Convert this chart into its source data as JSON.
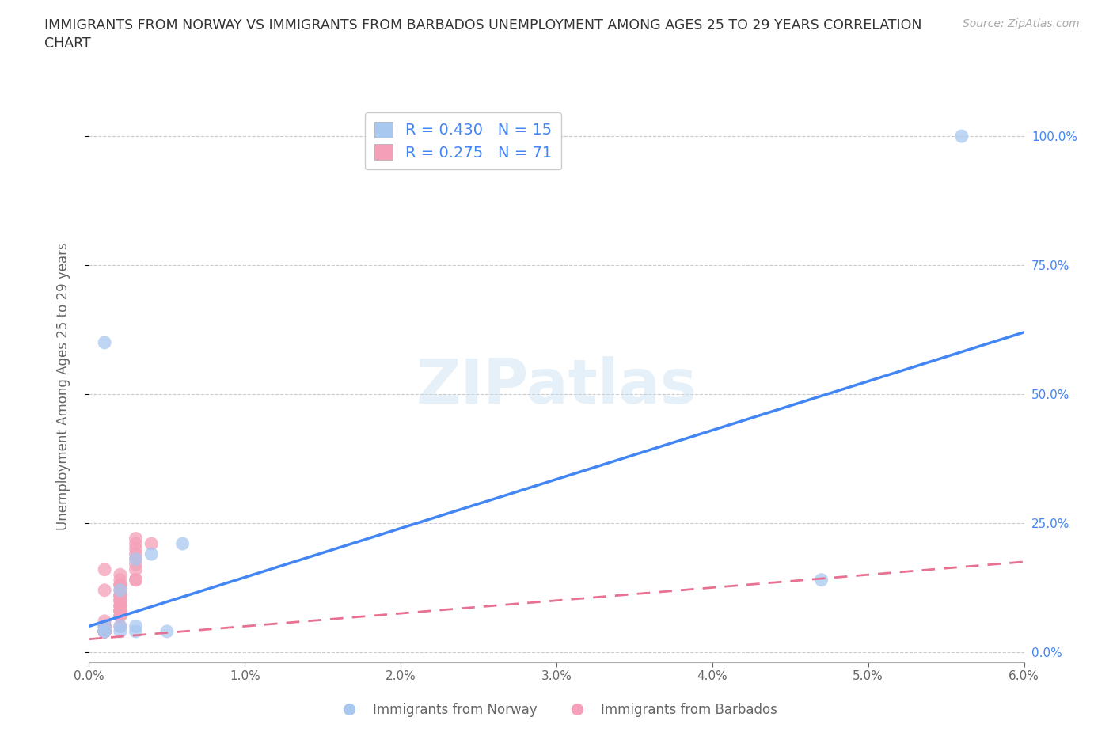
{
  "title_line1": "IMMIGRANTS FROM NORWAY VS IMMIGRANTS FROM BARBADOS UNEMPLOYMENT AMONG AGES 25 TO 29 YEARS CORRELATION",
  "title_line2": "CHART",
  "source": "Source: ZipAtlas.com",
  "ylabel": "Unemployment Among Ages 25 to 29 years",
  "xlabel_norway": "Immigrants from Norway",
  "xlabel_barbados": "Immigrants from Barbados",
  "xlim": [
    0.0,
    0.06
  ],
  "ylim": [
    -0.02,
    1.05
  ],
  "norway_R": 0.43,
  "norway_N": 15,
  "barbados_R": 0.275,
  "barbados_N": 71,
  "norway_color": "#a8c8f0",
  "barbados_color": "#f4a0b8",
  "norway_line_color": "#4285f4",
  "barbados_line_color": "#e87090",
  "yticks": [
    0.0,
    0.25,
    0.5,
    0.75,
    1.0
  ],
  "ytick_labels": [
    "0.0%",
    "25.0%",
    "50.0%",
    "75.0%",
    "100.0%"
  ],
  "xticks": [
    0.0,
    0.01,
    0.02,
    0.03,
    0.04,
    0.05,
    0.06
  ],
  "xtick_labels": [
    "0.0%",
    "1.0%",
    "2.0%",
    "3.0%",
    "4.0%",
    "5.0%",
    "6.0%"
  ],
  "norway_x": [
    0.056,
    0.001,
    0.003,
    0.005,
    0.003,
    0.002,
    0.001,
    0.004,
    0.006,
    0.001,
    0.002,
    0.001,
    0.003,
    0.047,
    0.002
  ],
  "norway_y": [
    1.0,
    0.6,
    0.04,
    0.04,
    0.18,
    0.05,
    0.05,
    0.19,
    0.21,
    0.04,
    0.12,
    0.04,
    0.05,
    0.14,
    0.04
  ],
  "barbados_x": [
    0.001,
    0.001,
    0.002,
    0.003,
    0.001,
    0.002,
    0.001,
    0.001,
    0.001,
    0.002,
    0.003,
    0.003,
    0.002,
    0.003,
    0.004,
    0.001,
    0.001,
    0.002,
    0.001,
    0.001,
    0.001,
    0.002,
    0.001,
    0.002,
    0.001,
    0.002,
    0.001,
    0.003,
    0.001,
    0.003,
    0.002,
    0.001,
    0.002,
    0.002,
    0.001,
    0.001,
    0.002,
    0.001,
    0.001,
    0.001,
    0.002,
    0.001,
    0.001,
    0.001,
    0.003,
    0.002,
    0.001,
    0.002,
    0.001,
    0.002,
    0.001,
    0.002,
    0.003,
    0.001,
    0.001,
    0.002,
    0.001,
    0.002,
    0.003,
    0.002,
    0.001,
    0.001,
    0.001,
    0.002,
    0.001,
    0.001,
    0.001,
    0.002,
    0.001,
    0.001,
    0.001
  ],
  "barbados_y": [
    0.05,
    0.12,
    0.14,
    0.21,
    0.05,
    0.08,
    0.04,
    0.04,
    0.05,
    0.05,
    0.22,
    0.14,
    0.11,
    0.19,
    0.21,
    0.04,
    0.06,
    0.15,
    0.04,
    0.05,
    0.04,
    0.08,
    0.04,
    0.07,
    0.04,
    0.12,
    0.04,
    0.18,
    0.04,
    0.14,
    0.09,
    0.04,
    0.1,
    0.13,
    0.04,
    0.04,
    0.11,
    0.04,
    0.04,
    0.04,
    0.07,
    0.04,
    0.04,
    0.04,
    0.16,
    0.08,
    0.04,
    0.09,
    0.04,
    0.1,
    0.04,
    0.13,
    0.2,
    0.04,
    0.04,
    0.11,
    0.04,
    0.13,
    0.17,
    0.09,
    0.04,
    0.04,
    0.04,
    0.1,
    0.04,
    0.04,
    0.04,
    0.08,
    0.04,
    0.04,
    0.16
  ],
  "norway_line_x": [
    0.0,
    0.06
  ],
  "norway_line_y": [
    0.05,
    0.62
  ],
  "barbados_line_x": [
    0.0,
    0.06
  ],
  "barbados_line_y": [
    0.025,
    0.175
  ]
}
